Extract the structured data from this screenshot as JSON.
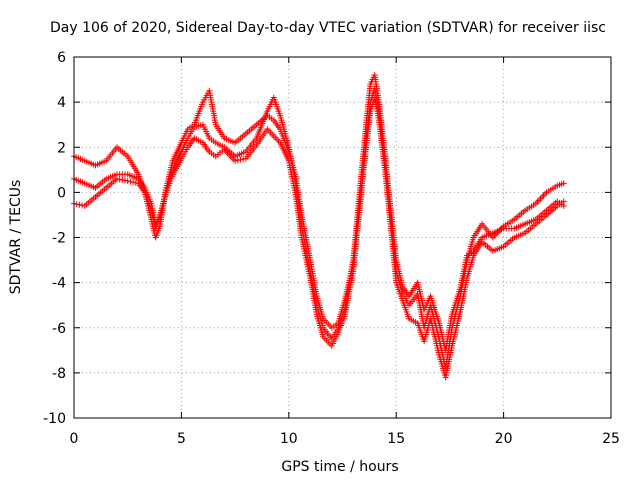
{
  "chart_data": {
    "type": "scatter",
    "title": "Day 106 of 2020, Sidereal Day-to-day VTEC variation (SDTVAR) for receiver iisc",
    "xlabel": "GPS time / hours",
    "ylabel": "SDTVAR / TECUs",
    "xlim": [
      0,
      25
    ],
    "ylim": [
      -10,
      6
    ],
    "xticks": [
      "0",
      "5",
      "10",
      "15",
      "20",
      "25"
    ],
    "yticks": [
      "-10",
      "-8",
      "-6",
      "-4",
      "-2",
      "0",
      "2",
      "4",
      "6"
    ],
    "grid": true,
    "marker": "+",
    "color": "#ff0000",
    "series": [
      {
        "x": [
          0.0,
          0.5,
          1.0,
          1.5,
          2.0,
          2.5,
          3.0,
          3.3,
          3.6,
          3.8,
          4.0,
          4.3,
          4.6,
          5.0,
          5.3,
          5.6,
          6.0,
          6.3,
          6.6,
          7.0,
          7.5,
          8.0,
          8.5,
          9.0,
          9.3,
          9.6,
          10.0,
          10.3,
          10.6,
          11.0,
          11.3,
          11.6,
          12.0,
          12.3,
          12.6,
          13.0,
          13.3,
          13.6,
          13.8,
          14.0,
          14.2,
          14.5,
          14.8,
          15.0,
          15.3,
          15.6,
          16.0,
          16.3,
          16.6,
          17.0,
          17.3,
          17.6,
          18.0,
          18.3,
          18.6,
          19.0,
          19.5,
          20.0,
          20.5,
          21.0,
          21.5,
          22.0,
          22.5,
          22.8
        ],
        "y": [
          1.6,
          1.4,
          1.2,
          1.4,
          2.0,
          1.6,
          0.8,
          0.0,
          -1.2,
          -2.0,
          -1.5,
          0.2,
          1.0,
          1.8,
          2.4,
          2.9,
          3.0,
          2.4,
          2.2,
          2.0,
          1.6,
          1.8,
          2.4,
          3.6,
          4.2,
          3.4,
          2.0,
          0.5,
          -1.5,
          -3.5,
          -5.0,
          -6.0,
          -6.5,
          -6.0,
          -5.2,
          -3.0,
          0.0,
          3.0,
          4.8,
          5.2,
          4.0,
          1.5,
          -1.5,
          -3.5,
          -4.5,
          -5.0,
          -4.5,
          -6.0,
          -5.0,
          -6.5,
          -7.8,
          -6.0,
          -4.5,
          -3.0,
          -2.0,
          -1.4,
          -2.0,
          -1.5,
          -1.2,
          -0.8,
          -0.5,
          0.0,
          0.3,
          0.4
        ]
      },
      {
        "x": [
          0.0,
          0.5,
          1.0,
          1.5,
          2.0,
          2.5,
          3.0,
          3.3,
          3.6,
          3.8,
          4.0,
          4.3,
          4.6,
          5.0,
          5.3,
          5.6,
          6.0,
          6.3,
          6.6,
          7.0,
          7.5,
          8.0,
          8.5,
          9.0,
          9.3,
          9.6,
          10.0,
          10.3,
          10.6,
          11.0,
          11.3,
          11.6,
          12.0,
          12.3,
          12.6,
          13.0,
          13.3,
          13.6,
          13.8,
          14.0,
          14.2,
          14.5,
          14.8,
          15.0,
          15.3,
          15.6,
          16.0,
          16.3,
          16.6,
          17.0,
          17.3,
          17.6,
          18.0,
          18.3,
          18.6,
          19.0,
          19.5,
          20.0,
          20.5,
          21.0,
          21.5,
          22.0,
          22.5,
          22.8
        ],
        "y": [
          0.6,
          0.4,
          0.2,
          0.6,
          0.8,
          0.8,
          0.6,
          0.2,
          -0.5,
          -1.4,
          -1.0,
          0.0,
          0.8,
          1.5,
          2.0,
          2.4,
          2.2,
          1.8,
          1.6,
          1.9,
          1.4,
          1.5,
          2.1,
          2.8,
          2.5,
          2.2,
          1.4,
          0.0,
          -2.0,
          -3.8,
          -5.4,
          -6.4,
          -6.8,
          -6.2,
          -5.5,
          -3.5,
          -0.5,
          2.0,
          3.6,
          4.2,
          3.2,
          0.8,
          -2.0,
          -4.0,
          -4.8,
          -5.6,
          -5.8,
          -6.6,
          -5.6,
          -7.2,
          -8.2,
          -6.8,
          -5.2,
          -3.8,
          -2.8,
          -2.2,
          -2.6,
          -2.4,
          -2.0,
          -1.8,
          -1.4,
          -1.0,
          -0.6,
          -0.4
        ]
      },
      {
        "x": [
          0.0,
          0.5,
          1.0,
          1.5,
          2.0,
          2.5,
          3.0,
          3.3,
          3.6,
          3.8,
          4.0,
          4.3,
          4.6,
          5.0,
          5.3,
          5.6,
          6.0,
          6.3,
          6.6,
          7.0,
          7.5,
          8.0,
          8.5,
          9.0,
          9.3,
          9.6,
          10.0,
          10.3,
          10.6,
          11.0,
          11.3,
          11.6,
          12.0,
          12.3,
          12.6,
          13.0,
          13.3,
          13.6,
          13.8,
          14.0,
          14.2,
          14.5,
          14.8,
          15.0,
          15.3,
          15.6,
          16.0,
          16.3,
          16.6,
          17.0,
          17.3,
          17.6,
          18.0,
          18.3,
          18.6,
          19.0,
          19.5,
          20.0,
          20.5,
          21.0,
          21.5,
          22.0,
          22.5,
          22.8
        ],
        "y": [
          -0.5,
          -0.6,
          -0.2,
          0.2,
          0.6,
          0.5,
          0.4,
          0.0,
          -0.8,
          -1.6,
          -1.2,
          0.2,
          1.4,
          2.2,
          2.8,
          3.0,
          4.0,
          4.5,
          3.0,
          2.4,
          2.2,
          2.6,
          3.0,
          3.4,
          3.2,
          2.8,
          1.8,
          0.8,
          -1.0,
          -3.0,
          -4.6,
          -5.6,
          -6.0,
          -5.8,
          -4.8,
          -3.2,
          -0.8,
          2.4,
          4.0,
          4.6,
          3.6,
          1.2,
          -1.2,
          -3.0,
          -4.2,
          -4.6,
          -4.0,
          -5.2,
          -4.6,
          -5.8,
          -7.0,
          -5.4,
          -4.2,
          -2.8,
          -2.6,
          -2.0,
          -1.8,
          -1.6,
          -1.6,
          -1.4,
          -1.2,
          -0.8,
          -0.4,
          -0.6
        ]
      }
    ]
  }
}
